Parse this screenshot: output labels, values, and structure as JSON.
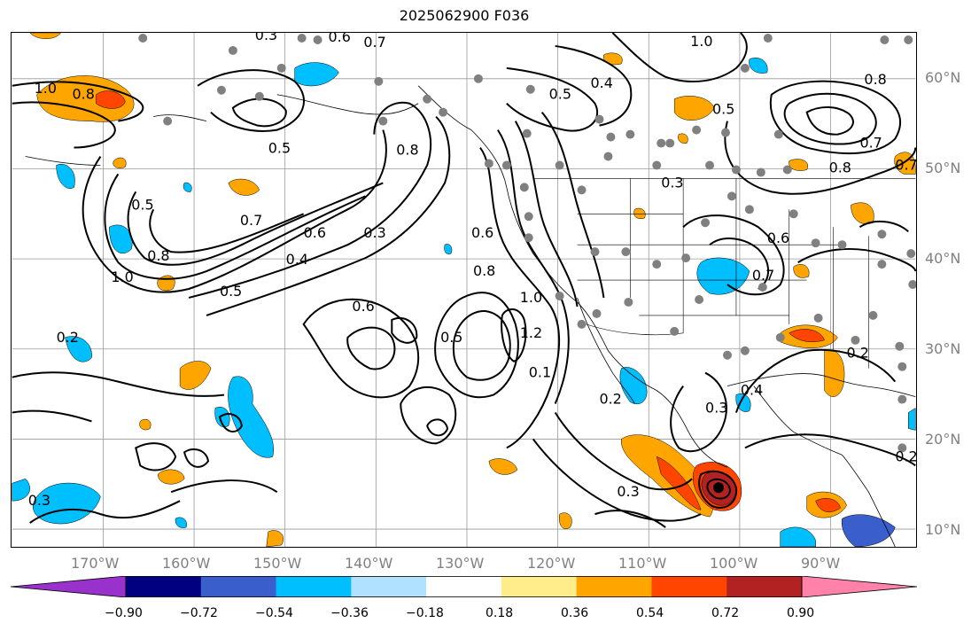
{
  "title": "2025062900 F036",
  "lat_labels": [
    "60°N",
    "50°N",
    "40°N",
    "30°N",
    "20°N",
    "10°N"
  ],
  "lon_labels": [
    "170°W",
    "160°W",
    "150°W",
    "140°W",
    "130°W",
    "120°W",
    "110°W",
    "100°W",
    "90°W"
  ],
  "colorbar": {
    "ticks": [
      "−0.90",
      "−0.72",
      "−0.54",
      "−0.36",
      "−0.18",
      "0.18",
      "0.36",
      "0.54",
      "0.72",
      "0.90"
    ],
    "colors": [
      "#9932CC",
      "#000080",
      "#3A5FCD",
      "#00BFFF",
      "#B0E2FF",
      "#FFFFFF",
      "#FFEC8B",
      "#FFA500",
      "#FF4500",
      "#B22222",
      "#FF82AB"
    ]
  },
  "contour_labels": [
    "1.0",
    "0.8",
    "0.3",
    "0.7",
    "0.6",
    "1.0",
    "0.5",
    "0.5",
    "0.4",
    "0.5",
    "0.5",
    "0.8",
    "0.7",
    "0.8",
    "0.6",
    "0.8",
    "1.0",
    "0.4",
    "0.5",
    "0.3",
    "0.6",
    "0.6",
    "0.5",
    "0.8",
    "1.0",
    "1.2",
    "0.1",
    "0.2",
    "0.3",
    "0.2",
    "0.3",
    "0.3",
    "0.3",
    "0.6",
    "0.7",
    "0.2",
    "0.7",
    "0.7",
    "0.8",
    "0.2",
    "0.4"
  ]
}
